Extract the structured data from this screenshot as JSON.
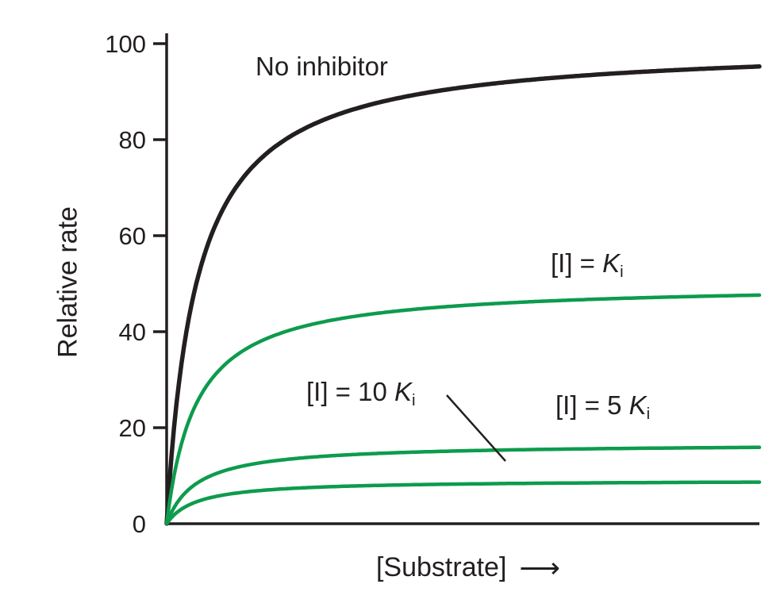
{
  "figure": {
    "ylabel": "Relative rate",
    "xlabel": "[Substrate]",
    "x_arrow": "⟶"
  },
  "labels": {
    "no_inhibitor": "No inhibitor",
    "ki": {
      "prefix": "[I] = ",
      "symbol": "K",
      "subscript": "i"
    },
    "ki10": {
      "prefix": "[I] = 10 ",
      "symbol": "K",
      "subscript": "i"
    },
    "ki5": {
      "prefix": "[I] = 5 ",
      "symbol": "K",
      "subscript": "i"
    }
  },
  "chart_data": {
    "type": "line",
    "title": "",
    "xlabel": "[Substrate]",
    "ylabel": "Relative rate",
    "ylim": [
      0,
      100
    ],
    "yticks": [
      0,
      20,
      40,
      60,
      80,
      100
    ],
    "x_range": [
      0,
      10
    ],
    "grid": false,
    "legend_position": "inline-annotations",
    "axis_color": "#231f20",
    "model": "michaelis_menten: v = vmax * S / (km + S)",
    "series": [
      {
        "name": "No inhibitor",
        "vmax": 100,
        "km": 0.5,
        "value_at_right_edge": 95,
        "color": "#231f20",
        "stroke_width": 5.5
      },
      {
        "name": "[I] = Ki",
        "vmax": 50,
        "km": 0.5,
        "value_at_right_edge": 48,
        "color": "#0d9b4d",
        "stroke_width": 4.5
      },
      {
        "name": "[I] = 5 Ki",
        "vmax": 16.7,
        "km": 0.5,
        "value_at_right_edge": 16,
        "color": "#0d9b4d",
        "stroke_width": 4.5
      },
      {
        "name": "[I] = 10 Ki",
        "vmax": 9.1,
        "km": 0.5,
        "value_at_right_edge": 9,
        "color": "#0d9b4d",
        "stroke_width": 4.5
      }
    ],
    "annotations": [
      {
        "text": "No inhibitor",
        "attached_to": "No inhibitor"
      },
      {
        "text": "[I] = Ki",
        "attached_to": "[I] = Ki"
      },
      {
        "text": "[I] = 5 Ki",
        "attached_to": "[I] = 5 Ki"
      },
      {
        "text": "[I] = 10 Ki",
        "attached_to": "[I] = 10 Ki",
        "leader_line": true
      }
    ]
  }
}
